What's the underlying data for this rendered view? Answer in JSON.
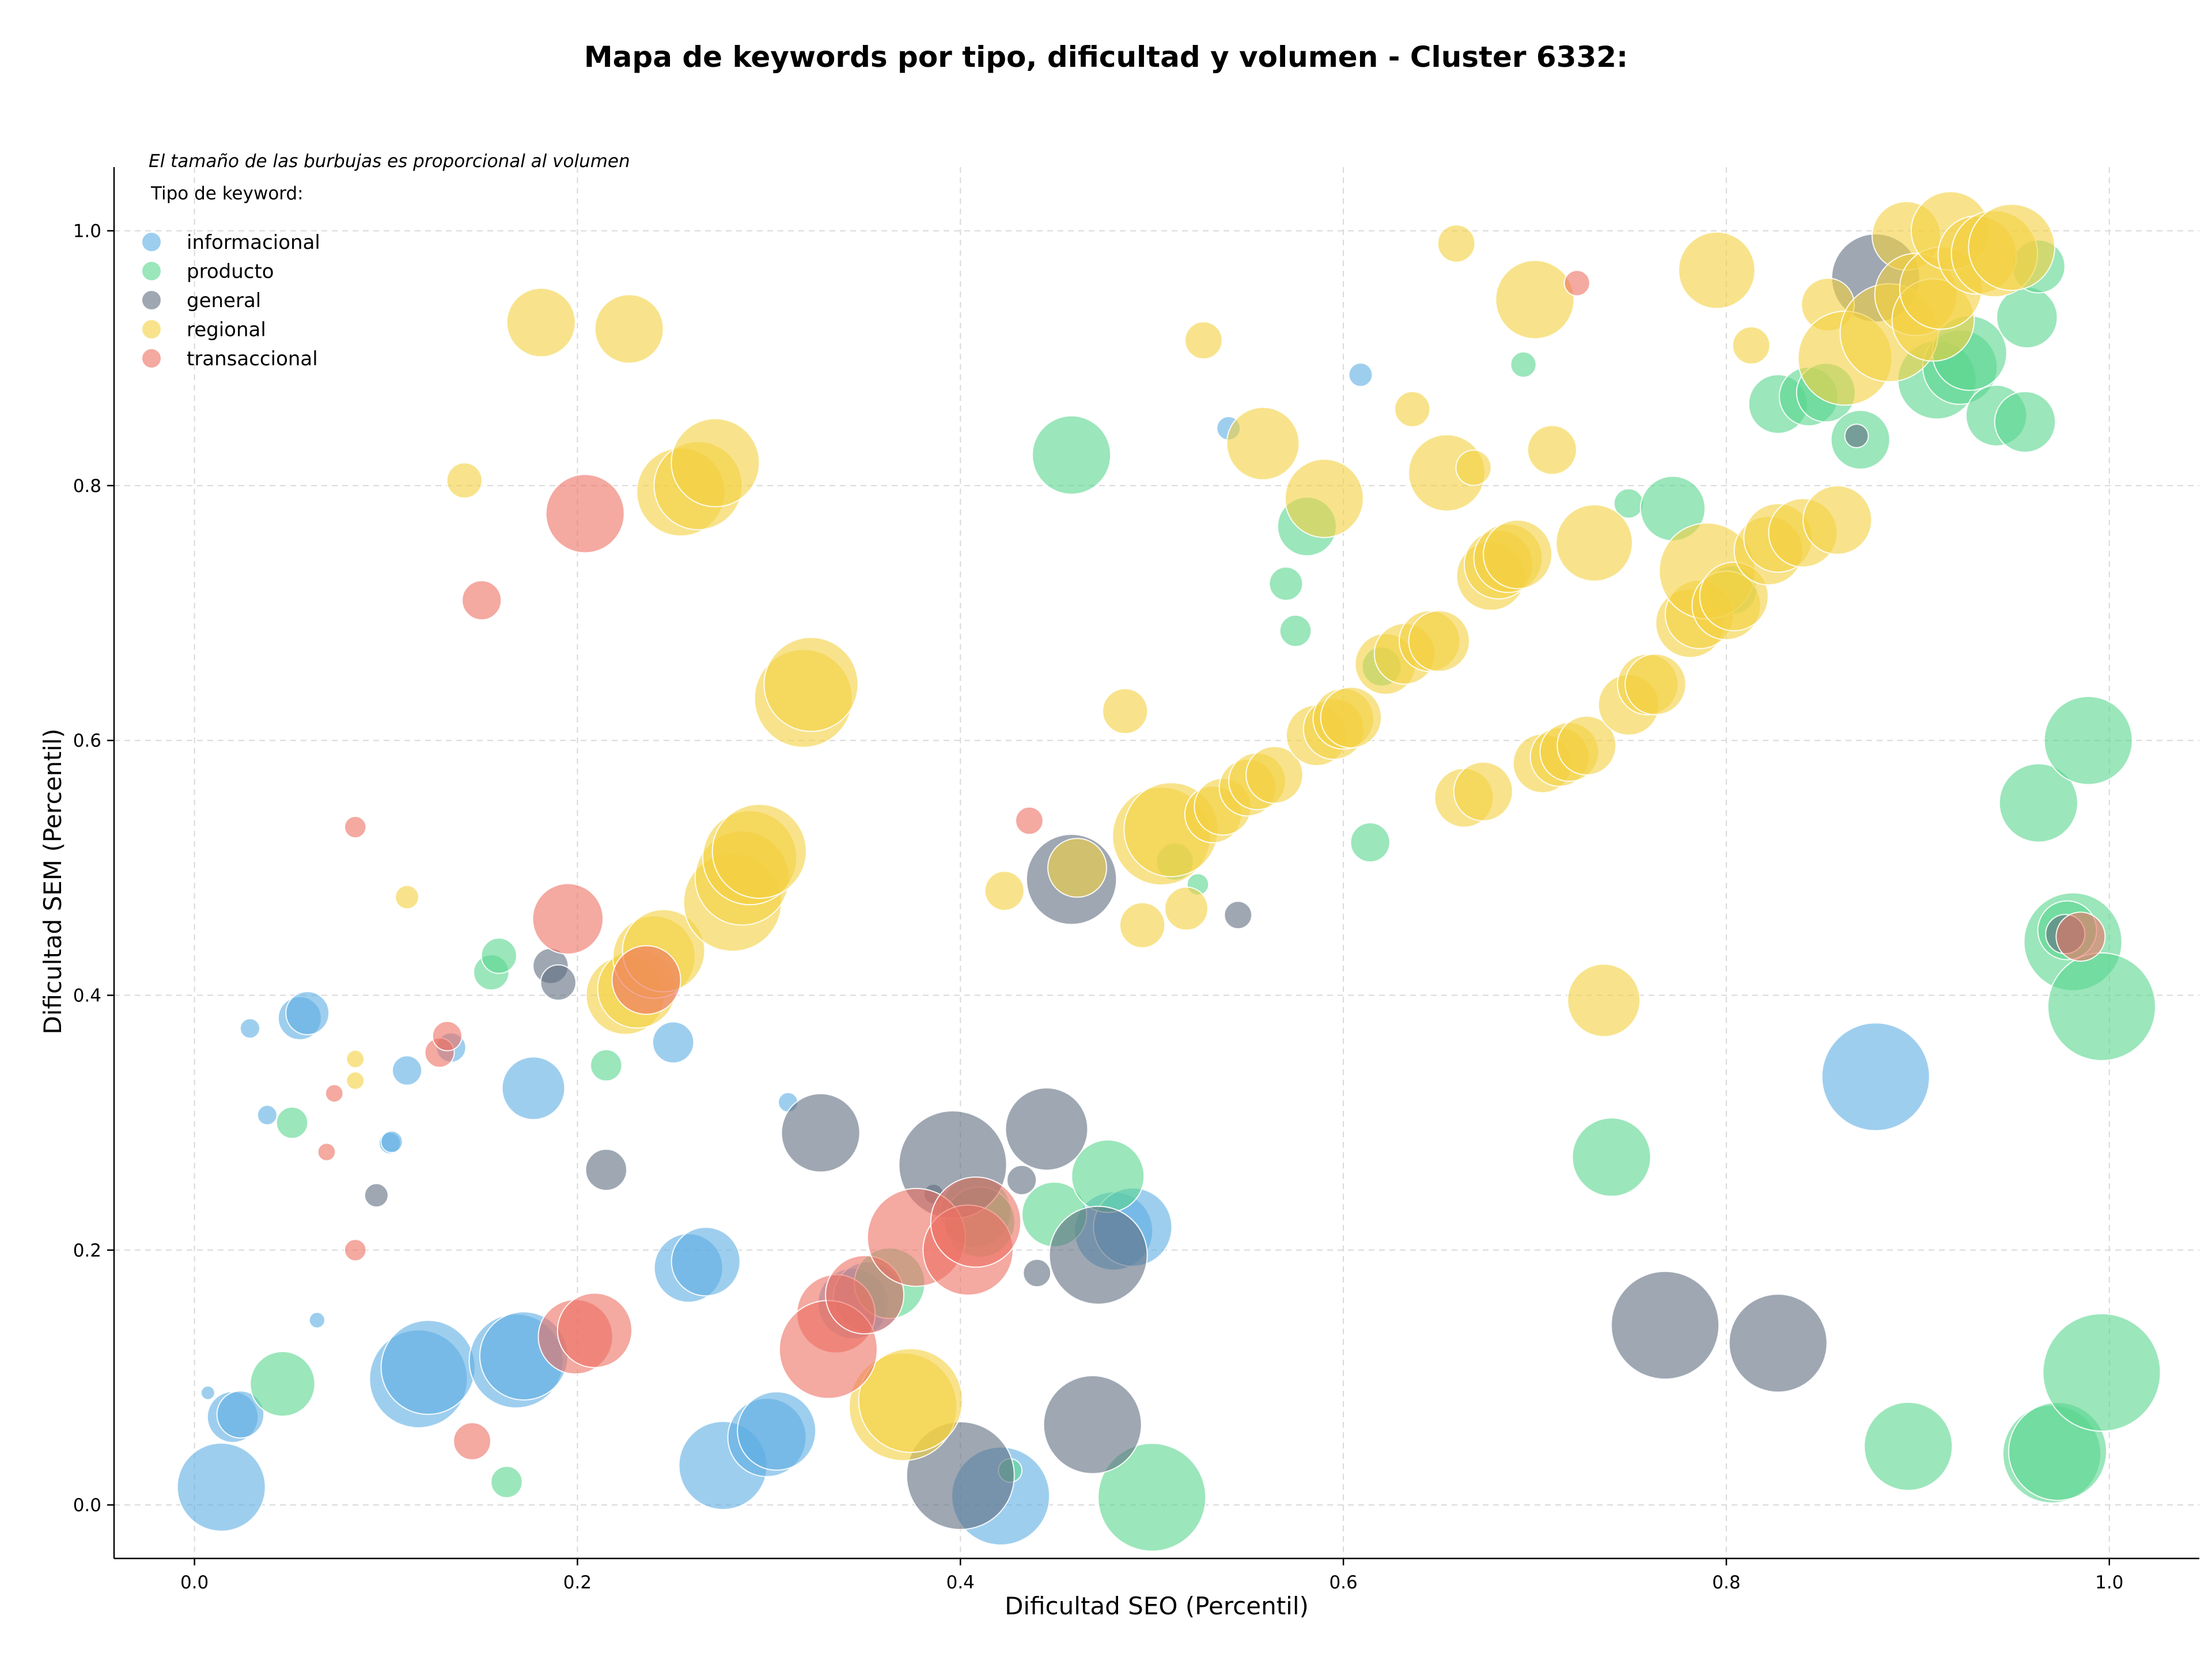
{
  "chart_data": {
    "type": "scatter",
    "title": "Mapa de keywords por tipo, dificultad y volumen - Cluster 6332:",
    "xlabel": "Dificultad SEO (Percentil)",
    "ylabel": "Dificultad SEM (Percentil)",
    "xlim": [
      -0.042,
      1.047
    ],
    "ylim": [
      -0.042,
      1.05
    ],
    "xticks": [
      "0.0",
      "0.2",
      "0.4",
      "0.6",
      "0.8",
      "1.0"
    ],
    "yticks": [
      "0.0",
      "0.2",
      "0.4",
      "0.6",
      "0.8",
      "1.0"
    ],
    "xtick_values": [
      0,
      0.2,
      0.4,
      0.6,
      0.8,
      1.0
    ],
    "ytick_values": [
      0,
      0.2,
      0.4,
      0.6,
      0.8,
      1.0
    ],
    "grid": true,
    "note": "El tamaño de las burbujas es proporcional al volumen",
    "legend_title": "Tipo de keyword:",
    "legend_placement": "top-left",
    "series": [
      {
        "name": "informacional",
        "color": "#5DADE2",
        "points": [
          [
            0.007,
            0.088,
            0.7
          ],
          [
            0.014,
            0.014,
            4.5
          ],
          [
            0.02,
            0.069,
            2.6
          ],
          [
            0.024,
            0.071,
            2.4
          ],
          [
            0.029,
            0.374,
            1.0
          ],
          [
            0.038,
            0.306,
            1.0
          ],
          [
            0.055,
            0.382,
            2.2
          ],
          [
            0.059,
            0.386,
            2.2
          ],
          [
            0.064,
            0.145,
            0.8
          ],
          [
            0.102,
            0.284,
            1.1
          ],
          [
            0.103,
            0.285,
            1.1
          ],
          [
            0.111,
            0.341,
            1.5
          ],
          [
            0.134,
            0.359,
            1.5
          ],
          [
            0.117,
            0.099,
            5.0
          ],
          [
            0.122,
            0.108,
            4.8
          ],
          [
            0.168,
            0.113,
            4.8
          ],
          [
            0.172,
            0.117,
            4.5
          ],
          [
            0.177,
            0.327,
            3.2
          ],
          [
            0.25,
            0.363,
            2.1
          ],
          [
            0.258,
            0.186,
            3.5
          ],
          [
            0.267,
            0.191,
            3.5
          ],
          [
            0.276,
            0.031,
            4.5
          ],
          [
            0.299,
            0.053,
            4.0
          ],
          [
            0.304,
            0.058,
            4.0
          ],
          [
            0.31,
            0.316,
            1.0
          ],
          [
            0.344,
            0.158,
            3.6
          ],
          [
            0.352,
            0.163,
            3.6
          ],
          [
            0.421,
            0.007,
            5.0
          ],
          [
            0.48,
            0.215,
            4.0
          ],
          [
            0.49,
            0.218,
            4.0
          ],
          [
            0.54,
            0.845,
            1.2
          ],
          [
            0.609,
            0.887,
            1.2
          ],
          [
            0.878,
            0.336,
            5.5
          ]
        ]
      },
      {
        "name": "producto",
        "color": "#58D68D",
        "points": [
          [
            0.046,
            0.095,
            3.3
          ],
          [
            0.051,
            0.3,
            1.6
          ],
          [
            0.155,
            0.418,
            1.8
          ],
          [
            0.159,
            0.431,
            1.8
          ],
          [
            0.163,
            0.018,
            1.6
          ],
          [
            0.215,
            0.345,
            1.6
          ],
          [
            0.363,
            0.174,
            3.6
          ],
          [
            0.408,
            0.23,
            3.6
          ],
          [
            0.41,
            0.222,
            3.6
          ],
          [
            0.426,
            0.027,
            1.2
          ],
          [
            0.449,
            0.228,
            3.3
          ],
          [
            0.458,
            0.824,
            4.0
          ],
          [
            0.477,
            0.258,
            3.7
          ],
          [
            0.5,
            0.006,
            5.5
          ],
          [
            0.512,
            0.505,
            1.9
          ],
          [
            0.524,
            0.487,
            1.1
          ],
          [
            0.57,
            0.723,
            1.7
          ],
          [
            0.575,
            0.686,
            1.6
          ],
          [
            0.581,
            0.768,
            3.0
          ],
          [
            0.614,
            0.52,
            2.0
          ],
          [
            0.62,
            0.658,
            2.0
          ],
          [
            0.694,
            0.895,
            1.3
          ],
          [
            0.749,
            0.786,
            1.5
          ],
          [
            0.772,
            0.782,
            3.3
          ],
          [
            0.803,
            0.718,
            2.5
          ],
          [
            0.74,
            0.273,
            4.0
          ],
          [
            0.827,
            0.864,
            3.0
          ],
          [
            0.843,
            0.87,
            3.0
          ],
          [
            0.852,
            0.873,
            3.0
          ],
          [
            0.87,
            0.836,
            3.0
          ],
          [
            0.895,
            0.046,
            4.5
          ],
          [
            0.91,
            0.883,
            4.0
          ],
          [
            0.922,
            0.893,
            3.8
          ],
          [
            0.927,
            0.904,
            3.8
          ],
          [
            0.941,
            0.855,
            3.1
          ],
          [
            0.956,
            0.85,
            3.1
          ],
          [
            0.957,
            0.932,
            3.1
          ],
          [
            0.963,
            0.972,
            2.7
          ],
          [
            0.963,
            0.551,
            4.0
          ],
          [
            0.97,
            0.04,
            5.0
          ],
          [
            0.973,
            0.042,
            5.0
          ],
          [
            0.981,
            0.442,
            5.0
          ],
          [
            0.989,
            0.6,
            4.5
          ],
          [
            0.996,
            0.391,
            5.5
          ],
          [
            0.996,
            0.104,
            6.0
          ],
          [
            0.978,
            0.451,
            3.0
          ]
        ]
      },
      {
        "name": "general",
        "color": "#5D6D7E",
        "points": [
          [
            0.095,
            0.243,
            1.2
          ],
          [
            0.186,
            0.423,
            1.8
          ],
          [
            0.19,
            0.41,
            1.8
          ],
          [
            0.215,
            0.263,
            2.1
          ],
          [
            0.327,
            0.292,
            4.0
          ],
          [
            0.386,
            0.244,
            1.0
          ],
          [
            0.396,
            0.267,
            5.5
          ],
          [
            0.4,
            0.023,
            5.5
          ],
          [
            0.432,
            0.255,
            1.5
          ],
          [
            0.44,
            0.182,
            1.4
          ],
          [
            0.445,
            0.295,
            4.2
          ],
          [
            0.458,
            0.491,
            4.6
          ],
          [
            0.469,
            0.063,
            5.0
          ],
          [
            0.472,
            0.196,
            5.0
          ],
          [
            0.545,
            0.463,
            1.4
          ],
          [
            0.768,
            0.141,
            5.5
          ],
          [
            0.827,
            0.127,
            5.0
          ],
          [
            0.868,
            0.839,
            1.2
          ],
          [
            0.878,
            0.963,
            4.5
          ],
          [
            0.977,
            0.448,
            2.0
          ]
        ]
      },
      {
        "name": "regional",
        "color": "#F4D03F",
        "points": [
          [
            0.084,
            0.35,
            0.9
          ],
          [
            0.084,
            0.333,
            0.9
          ],
          [
            0.111,
            0.477,
            1.2
          ],
          [
            0.141,
            0.804,
            1.8
          ],
          [
            0.181,
            0.928,
            3.5
          ],
          [
            0.227,
            0.923,
            3.5
          ],
          [
            0.225,
            0.4,
            4.0
          ],
          [
            0.231,
            0.405,
            4.0
          ],
          [
            0.24,
            0.43,
            4.2
          ],
          [
            0.245,
            0.435,
            4.2
          ],
          [
            0.254,
            0.795,
            4.5
          ],
          [
            0.263,
            0.8,
            4.5
          ],
          [
            0.272,
            0.818,
            4.5
          ],
          [
            0.281,
            0.473,
            5.0
          ],
          [
            0.286,
            0.492,
            4.8
          ],
          [
            0.29,
            0.508,
            4.8
          ],
          [
            0.295,
            0.513,
            4.8
          ],
          [
            0.318,
            0.633,
            5.0
          ],
          [
            0.322,
            0.644,
            4.8
          ],
          [
            0.37,
            0.077,
            5.5
          ],
          [
            0.374,
            0.082,
            5.3
          ],
          [
            0.423,
            0.482,
            2.0
          ],
          [
            0.461,
            0.5,
            3.0
          ],
          [
            0.486,
            0.623,
            2.3
          ],
          [
            0.495,
            0.455,
            2.3
          ],
          [
            0.505,
            0.525,
            5.0
          ],
          [
            0.51,
            0.53,
            4.8
          ],
          [
            0.518,
            0.468,
            2.2
          ],
          [
            0.527,
            0.914,
            1.9
          ],
          [
            0.532,
            0.542,
            2.9
          ],
          [
            0.537,
            0.548,
            2.9
          ],
          [
            0.55,
            0.563,
            2.9
          ],
          [
            0.555,
            0.568,
            2.9
          ],
          [
            0.564,
            0.573,
            2.9
          ],
          [
            0.558,
            0.833,
            3.7
          ],
          [
            0.586,
            0.604,
            3.1
          ],
          [
            0.59,
            0.79,
            4.0
          ],
          [
            0.595,
            0.609,
            3.1
          ],
          [
            0.6,
            0.617,
            3.1
          ],
          [
            0.604,
            0.618,
            3.1
          ],
          [
            0.622,
            0.66,
            3.1
          ],
          [
            0.632,
            0.668,
            3.1
          ],
          [
            0.636,
            0.86,
            1.8
          ],
          [
            0.645,
            0.678,
            3.1
          ],
          [
            0.65,
            0.678,
            3.1
          ],
          [
            0.654,
            0.81,
            3.9
          ],
          [
            0.659,
            0.99,
            1.9
          ],
          [
            0.663,
            0.555,
            3.0
          ],
          [
            0.668,
            0.814,
            1.8
          ],
          [
            0.673,
            0.56,
            3.0
          ],
          [
            0.677,
            0.729,
            3.5
          ],
          [
            0.681,
            0.738,
            3.5
          ],
          [
            0.686,
            0.743,
            3.5
          ],
          [
            0.691,
            0.746,
            3.5
          ],
          [
            0.7,
            0.946,
            4.0
          ],
          [
            0.704,
            0.582,
            3.0
          ],
          [
            0.709,
            0.828,
            2.5
          ],
          [
            0.713,
            0.587,
            3.0
          ],
          [
            0.718,
            0.591,
            3.0
          ],
          [
            0.727,
            0.596,
            3.0
          ],
          [
            0.731,
            0.755,
            3.9
          ],
          [
            0.736,
            0.396,
            3.7
          ],
          [
            0.749,
            0.628,
            3.1
          ],
          [
            0.759,
            0.644,
            3.1
          ],
          [
            0.763,
            0.644,
            3.1
          ],
          [
            0.781,
            0.692,
            3.5
          ],
          [
            0.786,
            0.699,
            3.5
          ],
          [
            0.79,
            0.733,
            4.9
          ],
          [
            0.795,
            0.969,
            3.9
          ],
          [
            0.8,
            0.706,
            3.5
          ],
          [
            0.804,
            0.713,
            3.5
          ],
          [
            0.813,
            0.91,
            1.9
          ],
          [
            0.822,
            0.749,
            3.5
          ],
          [
            0.827,
            0.759,
            3.5
          ],
          [
            0.84,
            0.763,
            3.5
          ],
          [
            0.853,
            0.942,
            2.7
          ],
          [
            0.858,
            0.773,
            3.5
          ],
          [
            0.862,
            0.9,
            4.8
          ],
          [
            0.885,
            0.92,
            5.0
          ],
          [
            0.894,
            0.996,
            3.5
          ],
          [
            0.899,
            0.95,
            4.2
          ],
          [
            0.908,
            0.93,
            4.2
          ],
          [
            0.912,
            0.955,
            4.2
          ],
          [
            0.917,
            1.0,
            4.0
          ],
          [
            0.931,
            0.981,
            4.0
          ],
          [
            0.94,
            0.982,
            4.4
          ],
          [
            0.949,
            0.987,
            4.4
          ]
        ]
      },
      {
        "name": "transaccional",
        "color": "#EC7063",
        "points": [
          [
            0.069,
            0.277,
            0.9
          ],
          [
            0.073,
            0.323,
            0.9
          ],
          [
            0.084,
            0.532,
            1.1
          ],
          [
            0.084,
            0.2,
            1.1
          ],
          [
            0.128,
            0.355,
            1.5
          ],
          [
            0.132,
            0.368,
            1.5
          ],
          [
            0.145,
            0.05,
            1.9
          ],
          [
            0.15,
            0.71,
            2.0
          ],
          [
            0.195,
            0.46,
            3.6
          ],
          [
            0.199,
            0.132,
            3.8
          ],
          [
            0.204,
            0.778,
            4.0
          ],
          [
            0.209,
            0.137,
            3.8
          ],
          [
            0.236,
            0.412,
            3.5
          ],
          [
            0.335,
            0.15,
            4.0
          ],
          [
            0.331,
            0.122,
            5.0
          ],
          [
            0.35,
            0.165,
            4.0
          ],
          [
            0.377,
            0.21,
            5.0
          ],
          [
            0.404,
            0.2,
            4.6
          ],
          [
            0.408,
            0.222,
            4.6
          ],
          [
            0.436,
            0.537,
            1.4
          ],
          [
            0.722,
            0.959,
            1.3
          ],
          [
            0.985,
            0.446,
            2.5
          ]
        ]
      }
    ]
  }
}
